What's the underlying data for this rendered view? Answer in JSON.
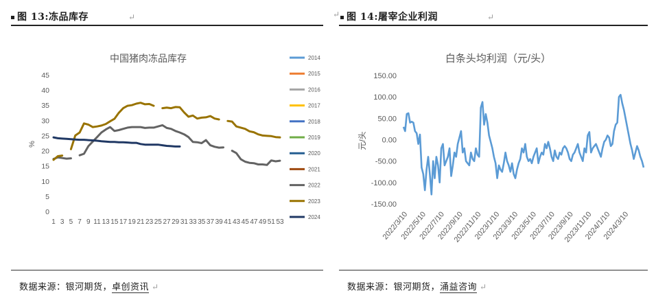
{
  "figures": [
    {
      "label": "图 13:",
      "title": "冻品库存",
      "source_prefix": "数据来源：银河期货，",
      "source_org": "卓创资讯"
    },
    {
      "label": "图 14:",
      "title": "屠宰企业利润",
      "source_prefix": "数据来源：银河期货，",
      "source_org": "涌益咨询"
    }
  ],
  "para_mark": "↵",
  "chart_data": [
    {
      "type": "line",
      "title": "中国猪肉冻品库存",
      "ylabel": "%",
      "xlabel": "",
      "ylim": [
        0,
        45
      ],
      "yticks": [
        0,
        5,
        10,
        15,
        20,
        25,
        30,
        35,
        40,
        45
      ],
      "xlim": [
        1,
        53
      ],
      "xtick_labels": [
        "1",
        "3",
        "5",
        "7",
        "9",
        "11",
        "13",
        "15",
        "17",
        "19",
        "21",
        "23",
        "25",
        "27",
        "29",
        "31",
        "33",
        "35",
        "37",
        "39",
        "41",
        "43",
        "45",
        "47",
        "49",
        "51",
        "53"
      ],
      "legend_position": "right",
      "series": [
        {
          "name": "2014",
          "color": "#5b9bd5",
          "points": []
        },
        {
          "name": "2015",
          "color": "#ed7d31",
          "points": []
        },
        {
          "name": "2016",
          "color": "#a5a5a5",
          "points": []
        },
        {
          "name": "2017",
          "color": "#ffc000",
          "points": []
        },
        {
          "name": "2018",
          "color": "#4472c4",
          "points": []
        },
        {
          "name": "2019",
          "color": "#70ad47",
          "points": []
        },
        {
          "name": "2020",
          "color": "#255e91",
          "points": []
        },
        {
          "name": "2021",
          "color": "#9e480e",
          "points": []
        },
        {
          "name": "2022",
          "color": "#636363",
          "points": [
            [
              1,
              17.3
            ],
            [
              2,
              17.8
            ],
            [
              3,
              17.6
            ],
            [
              4,
              17.4
            ],
            [
              5,
              17.5
            ],
            [
              null,
              null
            ],
            [
              7,
              18.5
            ],
            [
              8,
              19.0
            ],
            [
              9,
              21.5
            ],
            [
              10,
              23.0
            ],
            [
              11,
              24.5
            ],
            [
              12,
              26.0
            ],
            [
              13,
              27.0
            ],
            [
              14,
              27.8
            ],
            [
              15,
              26.5
            ],
            [
              16,
              26.8
            ],
            [
              17,
              27.2
            ],
            [
              18,
              27.6
            ],
            [
              19,
              27.8
            ],
            [
              20,
              27.8
            ],
            [
              21,
              27.8
            ],
            [
              22,
              27.5
            ],
            [
              23,
              27.6
            ],
            [
              24,
              27.6
            ],
            [
              25,
              28.0
            ],
            [
              26,
              28.4
            ],
            [
              27,
              27.5
            ],
            [
              28,
              27.2
            ],
            [
              29,
              26.5
            ],
            [
              30,
              26.0
            ],
            [
              31,
              25.4
            ],
            [
              32,
              24.5
            ],
            [
              33,
              22.9
            ],
            [
              34,
              22.8
            ],
            [
              35,
              22.5
            ],
            [
              36,
              23.5
            ],
            [
              37,
              21.8
            ],
            [
              38,
              21.3
            ],
            [
              39,
              21.0
            ],
            [
              40,
              21.1
            ],
            [
              null,
              null
            ],
            [
              42,
              20.0
            ],
            [
              43,
              19.2
            ],
            [
              44,
              17.2
            ],
            [
              45,
              16.4
            ],
            [
              46,
              16.0
            ],
            [
              47,
              15.9
            ],
            [
              48,
              15.5
            ],
            [
              49,
              15.5
            ],
            [
              50,
              15.3
            ],
            [
              51,
              16.8
            ],
            [
              52,
              16.5
            ],
            [
              53,
              16.7
            ]
          ]
        },
        {
          "name": "2023",
          "color": "#997300",
          "points": [
            [
              1,
              17.0
            ],
            [
              2,
              18.2
            ],
            [
              3,
              18.4
            ],
            [
              null,
              null
            ],
            [
              5,
              20.5
            ],
            [
              6,
              25.0
            ],
            [
              7,
              26.0
            ],
            [
              8,
              29.0
            ],
            [
              9,
              28.6
            ],
            [
              10,
              27.8
            ],
            [
              11,
              28.0
            ],
            [
              12,
              28.3
            ],
            [
              13,
              28.8
            ],
            [
              14,
              29.7
            ],
            [
              15,
              30.5
            ],
            [
              16,
              32.5
            ],
            [
              17,
              34.0
            ],
            [
              18,
              34.8
            ],
            [
              19,
              35.0
            ],
            [
              20,
              35.5
            ],
            [
              21,
              35.8
            ],
            [
              22,
              35.3
            ],
            [
              23,
              35.4
            ],
            [
              24,
              34.8
            ],
            [
              null,
              null
            ],
            [
              26,
              34.0
            ],
            [
              27,
              34.2
            ],
            [
              28,
              34.0
            ],
            [
              29,
              34.4
            ],
            [
              30,
              34.3
            ],
            [
              31,
              32.6
            ],
            [
              32,
              31.2
            ],
            [
              33,
              31.6
            ],
            [
              34,
              30.6
            ],
            [
              35,
              30.9
            ],
            [
              36,
              31.0
            ],
            [
              37,
              31.4
            ],
            [
              38,
              30.6
            ],
            [
              39,
              30.3
            ],
            [
              null,
              null
            ],
            [
              41,
              29.8
            ],
            [
              42,
              29.6
            ],
            [
              43,
              28.0
            ],
            [
              44,
              27.6
            ],
            [
              45,
              27.2
            ],
            [
              46,
              26.4
            ],
            [
              47,
              26.1
            ],
            [
              48,
              25.4
            ],
            [
              49,
              25.0
            ],
            [
              50,
              24.9
            ],
            [
              51,
              24.8
            ],
            [
              52,
              24.5
            ],
            [
              53,
              24.4
            ]
          ]
        },
        {
          "name": "2024",
          "color": "#203864",
          "points": [
            [
              1,
              24.4
            ],
            [
              2,
              24.1
            ],
            [
              3,
              24.0
            ],
            [
              4,
              23.9
            ],
            [
              5,
              23.8
            ],
            [
              6,
              23.7
            ],
            [
              7,
              23.6
            ],
            [
              8,
              23.6
            ],
            [
              9,
              23.5
            ],
            [
              10,
              23.4
            ],
            [
              11,
              23.3
            ],
            [
              12,
              23.1
            ],
            [
              13,
              23.0
            ],
            [
              14,
              22.9
            ],
            [
              15,
              22.9
            ],
            [
              16,
              22.8
            ],
            [
              17,
              22.8
            ],
            [
              18,
              22.7
            ],
            [
              19,
              22.6
            ],
            [
              20,
              22.6
            ],
            [
              21,
              22.2
            ],
            [
              22,
              22.0
            ],
            [
              23,
              22.0
            ],
            [
              24,
              22.0
            ],
            [
              25,
              22.0
            ],
            [
              26,
              21.8
            ],
            [
              27,
              21.6
            ],
            [
              28,
              21.5
            ],
            [
              29,
              21.4
            ],
            [
              30,
              21.4
            ]
          ]
        }
      ]
    },
    {
      "type": "line",
      "title": "白条头均利润（元/头）",
      "ylabel": "元/头",
      "xlabel": "",
      "ylim": [
        -150,
        150
      ],
      "yticks": [
        -150,
        -100,
        -50,
        0,
        50,
        100,
        150
      ],
      "ytick_labels": [
        "-150.00",
        "-100.00",
        "-50.00",
        "0.00",
        "50.00",
        "100.00",
        "150.00"
      ],
      "xtick_labels": [
        "2022/3/10",
        "2022/5/10",
        "2022/7/10",
        "2022/9/10",
        "2022/11/10",
        "2023/1/10",
        "2023/3/10",
        "2023/5/10",
        "2023/7/10",
        "2023/9/10",
        "2023/11/10",
        "2024/1/10",
        "2024/3/10"
      ],
      "series": [
        {
          "name": "白条头均利润",
          "color": "#5b9bd5",
          "values": [
            30,
            20,
            60,
            62,
            40,
            42,
            40,
            20,
            15,
            -10,
            12,
            -65,
            -80,
            -118,
            -70,
            -40,
            -80,
            -128,
            -50,
            -90,
            -40,
            -60,
            -100,
            -20,
            -10,
            -60,
            -50,
            -40,
            -20,
            -85,
            -60,
            -30,
            -40,
            -10,
            5,
            20,
            -30,
            -20,
            -50,
            -55,
            -60,
            -30,
            -45,
            -50,
            -20,
            -35,
            -40,
            75,
            88,
            35,
            60,
            40,
            10,
            -5,
            -20,
            -40,
            -55,
            -90,
            -60,
            -70,
            -75,
            -55,
            -30,
            -50,
            -60,
            -75,
            -55,
            -80,
            -90,
            -70,
            -55,
            -45,
            -20,
            -30,
            -10,
            -40,
            -50,
            -45,
            -55,
            -40,
            -30,
            -20,
            -55,
            -40,
            -30,
            -35,
            -10,
            -20,
            -5,
            -20,
            -40,
            -50,
            -25,
            -40,
            -45,
            -30,
            -35,
            -20,
            -15,
            -20,
            -30,
            -45,
            -50,
            -35,
            -30,
            -20,
            -10,
            -30,
            -40,
            -50,
            -20,
            -30,
            10,
            18,
            -30,
            -20,
            -15,
            -10,
            -20,
            -30,
            -40,
            -20,
            -5,
            0,
            10,
            5,
            -15,
            -10,
            20,
            35,
            40,
            100,
            105,
            85,
            70,
            50,
            30,
            10,
            -10,
            -25,
            -45,
            -30,
            -15,
            -25,
            -40,
            -50,
            -65
          ]
        }
      ]
    }
  ]
}
